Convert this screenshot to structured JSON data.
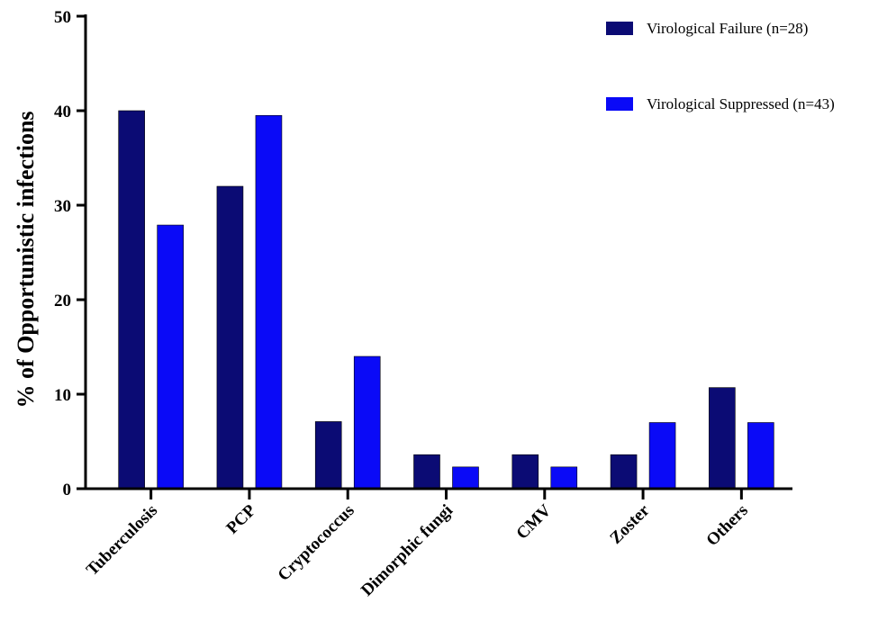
{
  "chart_data": {
    "type": "bar",
    "title": "",
    "xlabel": "",
    "ylabel": "% of Opportunistic infections",
    "ylim": [
      0,
      50
    ],
    "yticks": [
      "0",
      "10",
      "20",
      "30",
      "40",
      "50"
    ],
    "grid": false,
    "legend_position": "top-right",
    "categories": [
      "Tuberculosis",
      "PCP",
      "Cryptococcus",
      "Dimorphic fungi",
      "CMV",
      "Zoster",
      "Others"
    ],
    "series": [
      {
        "name": "Virological Failure (n=28)",
        "color": "#0b0b74",
        "values": [
          40.0,
          32.0,
          7.1,
          3.6,
          3.6,
          3.6,
          10.7
        ]
      },
      {
        "name": "Virological Suppressed (n=43)",
        "color": "#0a0af7",
        "values": [
          27.9,
          39.5,
          14.0,
          2.3,
          2.3,
          7.0,
          7.0
        ]
      }
    ]
  }
}
